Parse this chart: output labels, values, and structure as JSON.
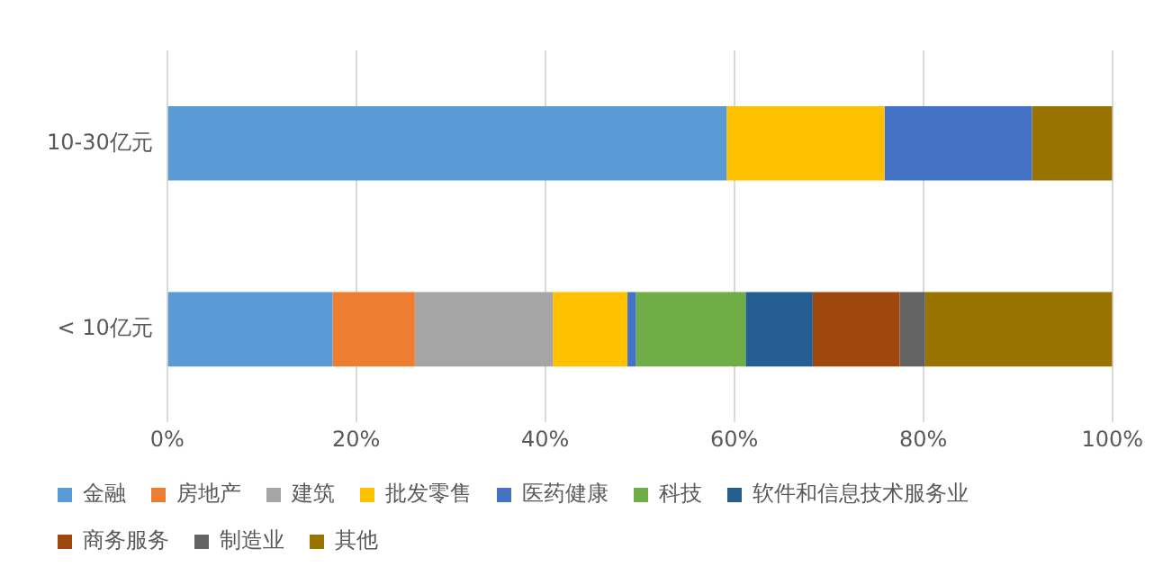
{
  "chart_data": {
    "type": "bar",
    "orientation": "horizontal",
    "stacked": true,
    "categories": [
      "10-30亿元",
      "< 10亿元"
    ],
    "series": [
      {
        "name": "金融",
        "color": "#5b9bd5",
        "values": [
          59.2,
          17.5
        ]
      },
      {
        "name": "房地产",
        "color": "#ed7d31",
        "values": [
          null,
          8.7
        ]
      },
      {
        "name": "建筑",
        "color": "#a5a5a5",
        "values": [
          null,
          14.6
        ]
      },
      {
        "name": "批发零售",
        "color": "#ffc000",
        "values": [
          16.7,
          7.9
        ]
      },
      {
        "name": "医药健康",
        "color": "#4472c4",
        "values": [
          15.6,
          0.9
        ]
      },
      {
        "name": "科技",
        "color": "#70ad47",
        "values": [
          null,
          11.6
        ]
      },
      {
        "name": "软件和信息技术服务业",
        "color": "#255e91",
        "values": [
          null,
          7.1
        ]
      },
      {
        "name": "商务服务",
        "color": "#9e480e",
        "values": [
          null,
          9.2
        ]
      },
      {
        "name": "制造业",
        "color": "#636363",
        "values": [
          null,
          2.7
        ]
      },
      {
        "name": "其他",
        "color": "#997300",
        "values": [
          8.5,
          19.8
        ]
      }
    ],
    "xlim": [
      0,
      100
    ],
    "xticks": [
      {
        "value": 0,
        "label": "0%"
      },
      {
        "value": 20,
        "label": "20%"
      },
      {
        "value": 40,
        "label": "40%"
      },
      {
        "value": 60,
        "label": "60%"
      },
      {
        "value": 80,
        "label": "80%"
      },
      {
        "value": 100,
        "label": "100%"
      }
    ],
    "grid": "x",
    "legend": "bottom"
  }
}
